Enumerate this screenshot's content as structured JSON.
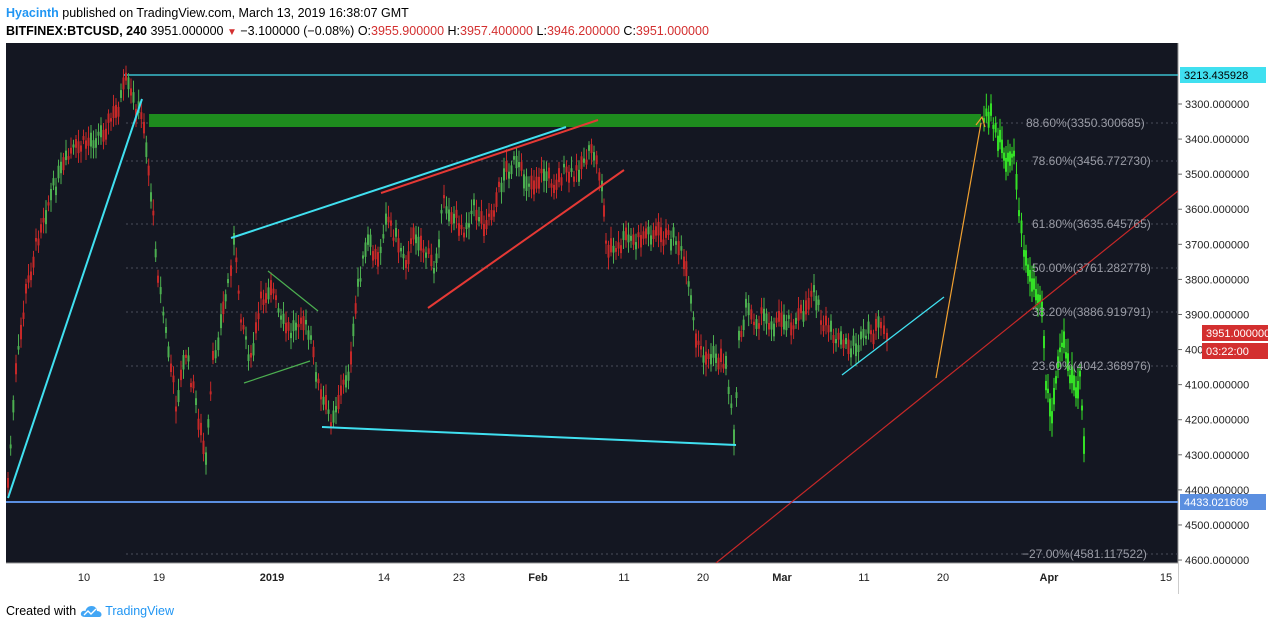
{
  "header": {
    "author": "Hyacinth",
    "published": "published on TradingView.com, March 13, 2019 16:38:07 GMT",
    "symbol": "BITFINEX:BTCUSD, 240",
    "last": "3951.000000",
    "change": "−3.100000 (−0.08%)",
    "o_label": "O:",
    "o": "3955.900000",
    "h_label": "H:",
    "h": "3957.400000",
    "l_label": "L:",
    "l": "3946.200000",
    "c_label": "C:",
    "c": "3951.000000"
  },
  "chart": {
    "colors": {
      "background": "#141722",
      "candle_up": "#4caf50",
      "candle_down": "#c62828",
      "recent_candles": "#34e026",
      "cyan": "#40e0f0",
      "red": "#e53935",
      "orange": "#f0a030",
      "green_zone": "#1e8c1e",
      "support": "#5b8fe0"
    },
    "price_axis": [
      "3300.000000",
      "3400.000000",
      "3500.000000",
      "3600.000000",
      "3700.000000",
      "3800.000000",
      "3900.000000",
      "4000.000000",
      "4100.000000",
      "4200.000000",
      "4300.000000",
      "4400.000000",
      "4500.000000",
      "4600.000000"
    ],
    "time_axis": [
      "10",
      "19",
      "2019",
      "14",
      "23",
      "Feb",
      "11",
      "20",
      "Mar",
      "11",
      "20",
      "Apr",
      "15"
    ],
    "fib_levels": [
      {
        "label": "88.60%(3350.300685)"
      },
      {
        "label": "78.60%(3456.772730)"
      },
      {
        "label": "61.80%(3635.645765)"
      },
      {
        "label": "50.00%(3761.282778)"
      },
      {
        "label": "38.20%(3886.919791)"
      },
      {
        "label": "23.60%(4042.368976)"
      },
      {
        "label": "−27.00%(4581.117522)"
      }
    ],
    "top_line_label": "3213.435928",
    "support_label": "4433.021609",
    "price_tag": "3951.000000",
    "countdown": "03:22:00"
  },
  "footer": {
    "created": "Created with",
    "brand": "TradingView"
  }
}
